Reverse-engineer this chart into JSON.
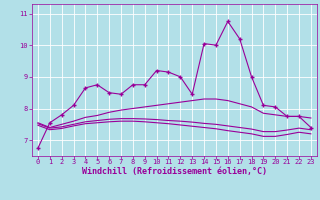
{
  "xlabel": "Windchill (Refroidissement éolien,°C)",
  "background_color": "#b2e0e8",
  "grid_color": "#ffffff",
  "line_color": "#990099",
  "xlim": [
    -0.5,
    23.5
  ],
  "ylim": [
    6.5,
    11.3
  ],
  "xticks": [
    0,
    1,
    2,
    3,
    4,
    5,
    6,
    7,
    8,
    9,
    10,
    11,
    12,
    13,
    14,
    15,
    16,
    17,
    18,
    19,
    20,
    21,
    22,
    23
  ],
  "yticks": [
    7,
    8,
    9,
    10,
    11
  ],
  "line1_x": [
    0,
    1,
    2,
    3,
    4,
    5,
    6,
    7,
    8,
    9,
    10,
    11,
    12,
    13,
    14,
    15,
    16,
    17,
    18,
    19,
    20,
    21,
    22,
    23
  ],
  "line1_y": [
    6.75,
    7.55,
    7.8,
    8.1,
    8.65,
    8.75,
    8.5,
    8.45,
    8.75,
    8.75,
    9.2,
    9.15,
    9.0,
    8.45,
    10.05,
    10.0,
    10.75,
    10.2,
    9.0,
    8.1,
    8.05,
    7.75,
    7.75,
    7.4
  ],
  "line2_x": [
    0,
    1,
    2,
    3,
    4,
    5,
    6,
    7,
    8,
    9,
    10,
    11,
    12,
    13,
    14,
    15,
    16,
    17,
    18,
    19,
    20,
    21,
    22,
    23
  ],
  "line2_y": [
    7.55,
    7.4,
    7.5,
    7.6,
    7.72,
    7.78,
    7.88,
    7.95,
    8.0,
    8.05,
    8.1,
    8.15,
    8.2,
    8.25,
    8.3,
    8.3,
    8.25,
    8.15,
    8.05,
    7.85,
    7.8,
    7.75,
    7.75,
    7.7
  ],
  "line3_x": [
    0,
    1,
    2,
    3,
    4,
    5,
    6,
    7,
    8,
    9,
    10,
    11,
    12,
    13,
    14,
    15,
    16,
    17,
    18,
    19,
    20,
    21,
    22,
    23
  ],
  "line3_y": [
    7.52,
    7.38,
    7.42,
    7.5,
    7.58,
    7.62,
    7.66,
    7.68,
    7.68,
    7.67,
    7.65,
    7.62,
    7.6,
    7.57,
    7.53,
    7.5,
    7.45,
    7.4,
    7.35,
    7.27,
    7.27,
    7.32,
    7.38,
    7.33
  ],
  "line4_x": [
    0,
    1,
    2,
    3,
    4,
    5,
    6,
    7,
    8,
    9,
    10,
    11,
    12,
    13,
    14,
    15,
    16,
    17,
    18,
    19,
    20,
    21,
    22,
    23
  ],
  "line4_y": [
    7.47,
    7.33,
    7.37,
    7.45,
    7.52,
    7.55,
    7.58,
    7.6,
    7.6,
    7.58,
    7.55,
    7.52,
    7.48,
    7.44,
    7.4,
    7.36,
    7.3,
    7.25,
    7.2,
    7.12,
    7.12,
    7.18,
    7.25,
    7.2
  ],
  "marker": "+",
  "markersize": 3,
  "linewidth": 0.8,
  "tick_fontsize": 5,
  "xlabel_fontsize": 6,
  "font_color": "#990099",
  "tick_color": "#990099"
}
